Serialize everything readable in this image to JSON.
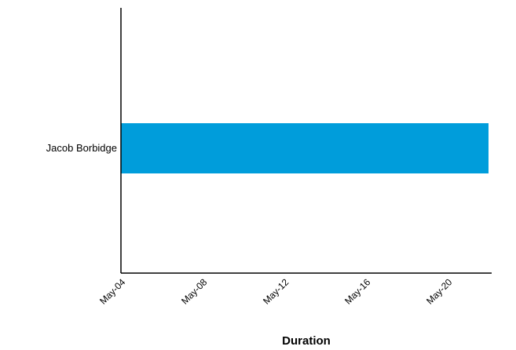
{
  "chart_data": {
    "type": "bar",
    "orientation": "horizontal",
    "categories": [
      "Jacob Borbidge"
    ],
    "series": [
      {
        "start": [
          "May-04"
        ],
        "end": [
          "May-22"
        ]
      }
    ],
    "xlabel": "Duration",
    "ylabel": "",
    "x_ticks": [
      "May-04",
      "May-08",
      "May-12",
      "May-16",
      "May-20"
    ],
    "x_range": [
      "May-04",
      "May-22"
    ],
    "grid": false,
    "legend": "none",
    "bar_color": "#009ddb",
    "axis_color": "#000000"
  }
}
